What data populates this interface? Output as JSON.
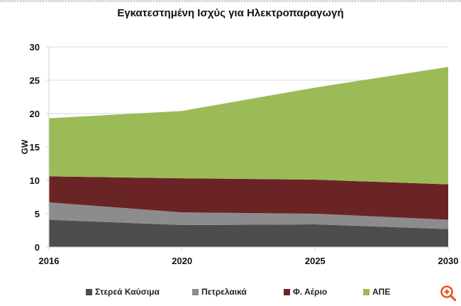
{
  "title": "Εγκατεστημένη Ισχύς για Ηλεκτροπαραγωγή",
  "chart_data": {
    "type": "area",
    "stacked": true,
    "title": "Εγκατεστημένη Ισχύς για Ηλεκτροπαραγωγή",
    "xlabel": "",
    "ylabel": "GW",
    "categories": [
      "2016",
      "2020",
      "2025",
      "2030"
    ],
    "ylim": [
      0,
      30
    ],
    "yticks": [
      0,
      5,
      10,
      15,
      20,
      25,
      30
    ],
    "grid": true,
    "legend_position": "bottom",
    "series": [
      {
        "name": "Στερεά Καύσιμα",
        "color": "#4d4d4d",
        "values": [
          4.1,
          3.3,
          3.4,
          2.7
        ]
      },
      {
        "name": "Πετρελαικά",
        "color": "#8c8c8c",
        "values": [
          2.6,
          1.9,
          1.6,
          1.4
        ]
      },
      {
        "name": "Φ. Αέριο",
        "color": "#6b2426",
        "values": [
          3.9,
          5.1,
          5.1,
          5.3
        ]
      },
      {
        "name": "ΑΠΕ",
        "color": "#9bbb59",
        "values": [
          8.7,
          10.1,
          13.8,
          17.6
        ]
      }
    ],
    "stacked_totals": [
      19.3,
      20.4,
      23.9,
      27.0
    ]
  },
  "legend": {
    "items": [
      {
        "label": "Στερεά Καύσιμα",
        "color": "#4d4d4d"
      },
      {
        "label": "Πετρελαικά",
        "color": "#8c8c8c"
      },
      {
        "label": "Φ. Αέριο",
        "color": "#6b2426"
      },
      {
        "label": "ΑΠΕ",
        "color": "#9bbb59"
      }
    ]
  },
  "overlay": {
    "zoom_icon": "zoom-in-icon",
    "zoom_color": "#e8552a"
  }
}
